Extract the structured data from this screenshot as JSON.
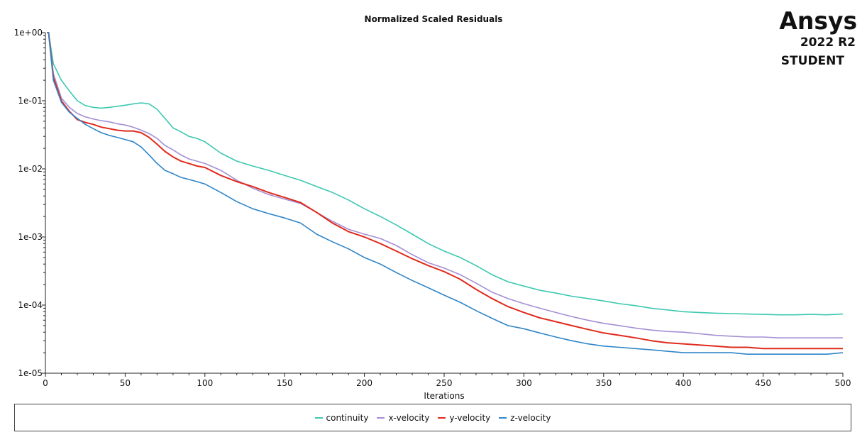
{
  "branding": {
    "name": "Ansys",
    "version": "2022 R2",
    "edition": "STUDENT"
  },
  "chart_data": {
    "type": "line",
    "title": "Normalized Scaled Residuals",
    "xlabel": "Iterations",
    "ylabel": "",
    "xlim": [
      0,
      500
    ],
    "ylim": [
      1e-05,
      1
    ],
    "yscale": "log",
    "grid": false,
    "legend_placement": "bottom",
    "x_ticks": [
      0,
      50,
      100,
      150,
      200,
      250,
      300,
      350,
      400,
      450,
      500
    ],
    "y_ticks": [
      1,
      0.1,
      0.01,
      0.001,
      0.0001,
      1e-05
    ],
    "y_tick_labels": [
      "1e+00",
      "1e-01",
      "1e-02",
      "1e-03",
      "1e-04",
      "1e-05"
    ],
    "x": [
      1,
      2,
      5,
      10,
      15,
      20,
      25,
      30,
      35,
      40,
      45,
      50,
      55,
      60,
      65,
      70,
      75,
      80,
      85,
      90,
      95,
      100,
      110,
      120,
      130,
      140,
      150,
      160,
      170,
      180,
      190,
      200,
      210,
      220,
      230,
      240,
      250,
      260,
      270,
      280,
      290,
      300,
      310,
      320,
      330,
      340,
      350,
      360,
      370,
      380,
      390,
      400,
      410,
      420,
      430,
      440,
      450,
      460,
      470,
      480,
      490,
      500
    ],
    "series": [
      {
        "name": "continuity",
        "color": "#3cc8b0",
        "values": [
          1,
          1,
          0.35,
          0.2,
          0.14,
          0.1,
          0.085,
          0.08,
          0.078,
          0.08,
          0.083,
          0.086,
          0.09,
          0.093,
          0.09,
          0.075,
          0.055,
          0.04,
          0.035,
          0.03,
          0.028,
          0.025,
          0.017,
          0.013,
          0.011,
          0.0095,
          0.008,
          0.0068,
          0.0055,
          0.0045,
          0.0035,
          0.0026,
          0.002,
          0.0015,
          0.0011,
          0.0008,
          0.00062,
          0.0005,
          0.00038,
          0.00028,
          0.00022,
          0.00019,
          0.000165,
          0.00015,
          0.000135,
          0.000125,
          0.000115,
          0.000105,
          9.8e-05,
          9e-05,
          8.5e-05,
          8e-05,
          7.8e-05,
          7.6e-05,
          7.5e-05,
          7.4e-05,
          7.3e-05,
          7.2e-05,
          7.2e-05,
          7.3e-05,
          7.2e-05,
          7.4e-05
        ]
      },
      {
        "name": "x-velocity",
        "color": "#a58fd4",
        "values": [
          1,
          1,
          0.25,
          0.11,
          0.08,
          0.065,
          0.058,
          0.054,
          0.051,
          0.049,
          0.046,
          0.044,
          0.041,
          0.037,
          0.033,
          0.028,
          0.022,
          0.019,
          0.016,
          0.014,
          0.013,
          0.012,
          0.0095,
          0.0068,
          0.0052,
          0.0042,
          0.0036,
          0.0031,
          0.0023,
          0.0017,
          0.0013,
          0.0011,
          0.00095,
          0.00075,
          0.00055,
          0.00042,
          0.00035,
          0.00028,
          0.00021,
          0.000155,
          0.000125,
          0.000105,
          9e-05,
          7.8e-05,
          6.8e-05,
          6e-05,
          5.4e-05,
          5e-05,
          4.6e-05,
          4.3e-05,
          4.1e-05,
          4e-05,
          3.8e-05,
          3.6e-05,
          3.5e-05,
          3.4e-05,
          3.4e-05,
          3.3e-05,
          3.3e-05,
          3.3e-05,
          3.3e-05,
          3.3e-05
        ]
      },
      {
        "name": "y-velocity",
        "color": "#e02a1c",
        "values": [
          1,
          1,
          0.22,
          0.1,
          0.07,
          0.053,
          0.048,
          0.045,
          0.041,
          0.039,
          0.037,
          0.036,
          0.036,
          0.034,
          0.029,
          0.023,
          0.018,
          0.015,
          0.013,
          0.012,
          0.011,
          0.0105,
          0.008,
          0.0065,
          0.0055,
          0.0045,
          0.0038,
          0.0032,
          0.0023,
          0.0016,
          0.0012,
          0.001,
          0.0008,
          0.00062,
          0.00048,
          0.00038,
          0.00031,
          0.00024,
          0.00017,
          0.000125,
          9.5e-05,
          7.8e-05,
          6.5e-05,
          5.7e-05,
          5e-05,
          4.4e-05,
          3.9e-05,
          3.6e-05,
          3.3e-05,
          3e-05,
          2.8e-05,
          2.7e-05,
          2.6e-05,
          2.5e-05,
          2.4e-05,
          2.4e-05,
          2.3e-05,
          2.3e-05,
          2.3e-05,
          2.3e-05,
          2.3e-05,
          2.3e-05
        ]
      },
      {
        "name": "z-velocity",
        "color": "#2f85c8",
        "values": [
          1,
          1,
          0.2,
          0.095,
          0.068,
          0.055,
          0.045,
          0.039,
          0.034,
          0.031,
          0.029,
          0.027,
          0.025,
          0.021,
          0.016,
          0.012,
          0.0095,
          0.0085,
          0.0075,
          0.007,
          0.0065,
          0.006,
          0.0045,
          0.0033,
          0.0026,
          0.0022,
          0.0019,
          0.0016,
          0.0011,
          0.00085,
          0.00067,
          0.0005,
          0.0004,
          0.0003,
          0.00023,
          0.00018,
          0.00014,
          0.00011,
          8.3e-05,
          6.4e-05,
          5e-05,
          4.5e-05,
          3.9e-05,
          3.4e-05,
          3e-05,
          2.7e-05,
          2.5e-05,
          2.4e-05,
          2.3e-05,
          2.2e-05,
          2.1e-05,
          2e-05,
          2e-05,
          2e-05,
          2e-05,
          1.9e-05,
          1.9e-05,
          1.9e-05,
          1.9e-05,
          1.9e-05,
          1.9e-05,
          2e-05
        ]
      }
    ]
  }
}
